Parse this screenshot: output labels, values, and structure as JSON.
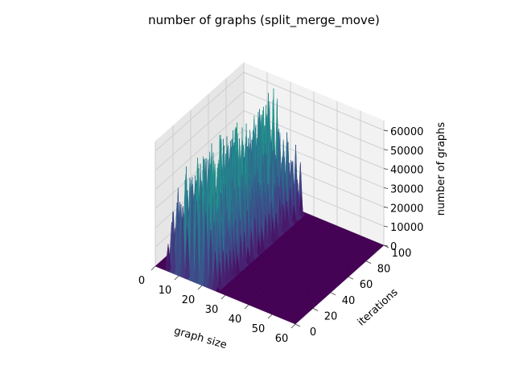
{
  "chart_data": {
    "type": "surface3d",
    "title": "number of graphs (split_merge_move)",
    "xlabel": "graph size",
    "ylabel": "iterations",
    "zlabel": "number of graphs",
    "xlim": [
      0,
      60
    ],
    "ylim": [
      0,
      100
    ],
    "zlim": [
      0,
      65000
    ],
    "xticks": [
      "0",
      "10",
      "20",
      "30",
      "40",
      "50",
      "60"
    ],
    "yticks": [
      "0",
      "20",
      "40",
      "60",
      "80",
      "100"
    ],
    "zticks": [
      "0",
      "10000",
      "20000",
      "30000",
      "40000",
      "50000",
      "60000"
    ],
    "colormap": "viridis",
    "grid": true,
    "surface": {
      "x_range": [
        0,
        60
      ],
      "y_range": [
        0,
        100
      ],
      "active_x_range": [
        4,
        26
      ],
      "max_value": 62000,
      "note_free": true
    }
  }
}
